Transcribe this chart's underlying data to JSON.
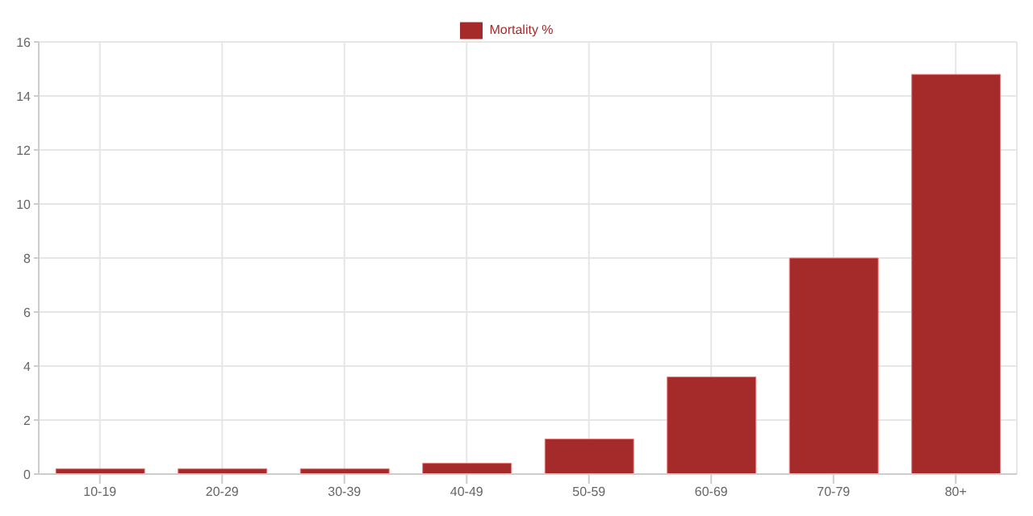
{
  "chart_data": {
    "type": "bar",
    "categories": [
      "10-19",
      "20-29",
      "30-39",
      "40-49",
      "50-59",
      "60-69",
      "70-79",
      "80+"
    ],
    "series": [
      {
        "name": "Mortality %",
        "color": "#a52a2a",
        "values": [
          0.2,
          0.2,
          0.2,
          0.4,
          1.3,
          3.6,
          8.0,
          14.8
        ]
      }
    ],
    "ylim": [
      0,
      16
    ],
    "yticks": [
      0,
      2,
      4,
      6,
      8,
      10,
      12,
      14,
      16
    ],
    "grid": true,
    "legend": "top"
  }
}
